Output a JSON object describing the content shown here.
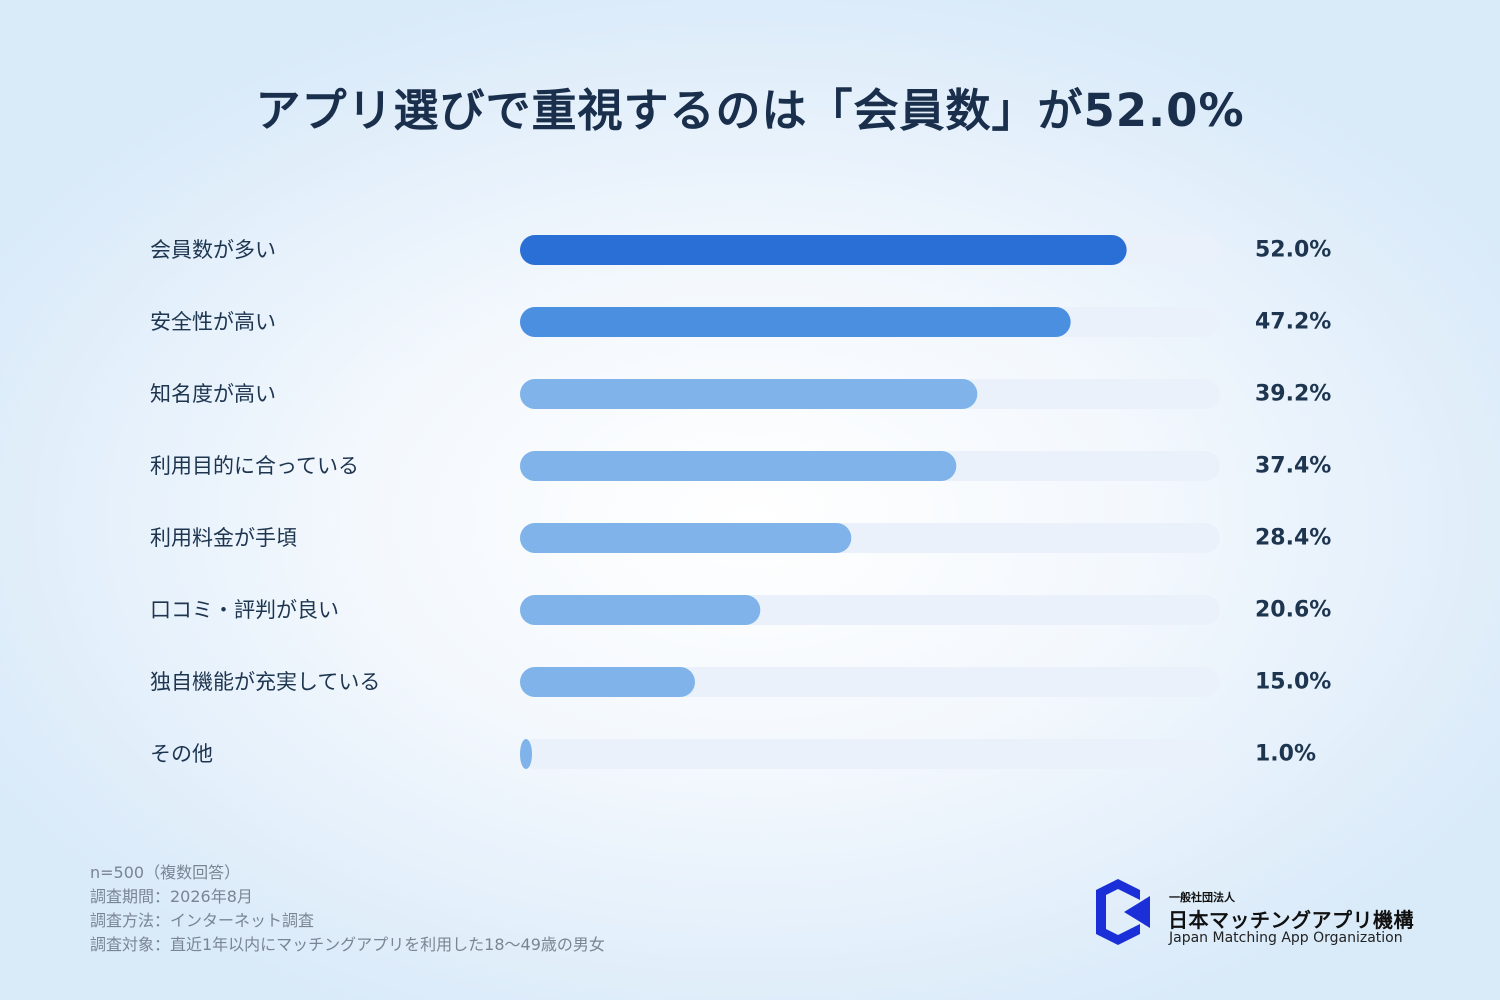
{
  "chart_data": {
    "type": "bar",
    "orientation": "horizontal",
    "title": "アプリ選びで重視するのは「会員数」が52.0%",
    "categories": [
      "会員数が多い",
      "安全性が高い",
      "知名度が高い",
      "利用目的に合っている",
      "利用料金が手頃",
      "口コミ・評判が良い",
      "独自機能が充実している",
      "その他"
    ],
    "values": [
      52.0,
      47.2,
      39.2,
      37.4,
      28.4,
      20.6,
      15.0,
      1.0
    ],
    "value_labels": [
      "52.0%",
      "47.2%",
      "39.2%",
      "37.4%",
      "28.4%",
      "20.6%",
      "15.0%",
      "1.0%"
    ],
    "xlim": [
      0,
      60
    ],
    "grid": false,
    "legend": "none",
    "colors": {
      "bar_first": "#2a6fd6",
      "bar_second": "#4a8fe0",
      "bar_rest": "#7fb3ea",
      "track": "#eaf1fa",
      "label": "#1e3550",
      "value": "#1e3550"
    }
  },
  "footnotes": [
    "n=500（複数回答）",
    "調査期間：2026年8月",
    "調査方法：インターネット調査",
    "調査対象：直近1年以内にマッチングアプリを利用した18〜49歳の男女"
  ],
  "logo": {
    "small": "一般社団法人",
    "name": "日本マッチングアプリ機構",
    "english": "Japan Matching App Organization",
    "color": "#1a2fd8"
  }
}
